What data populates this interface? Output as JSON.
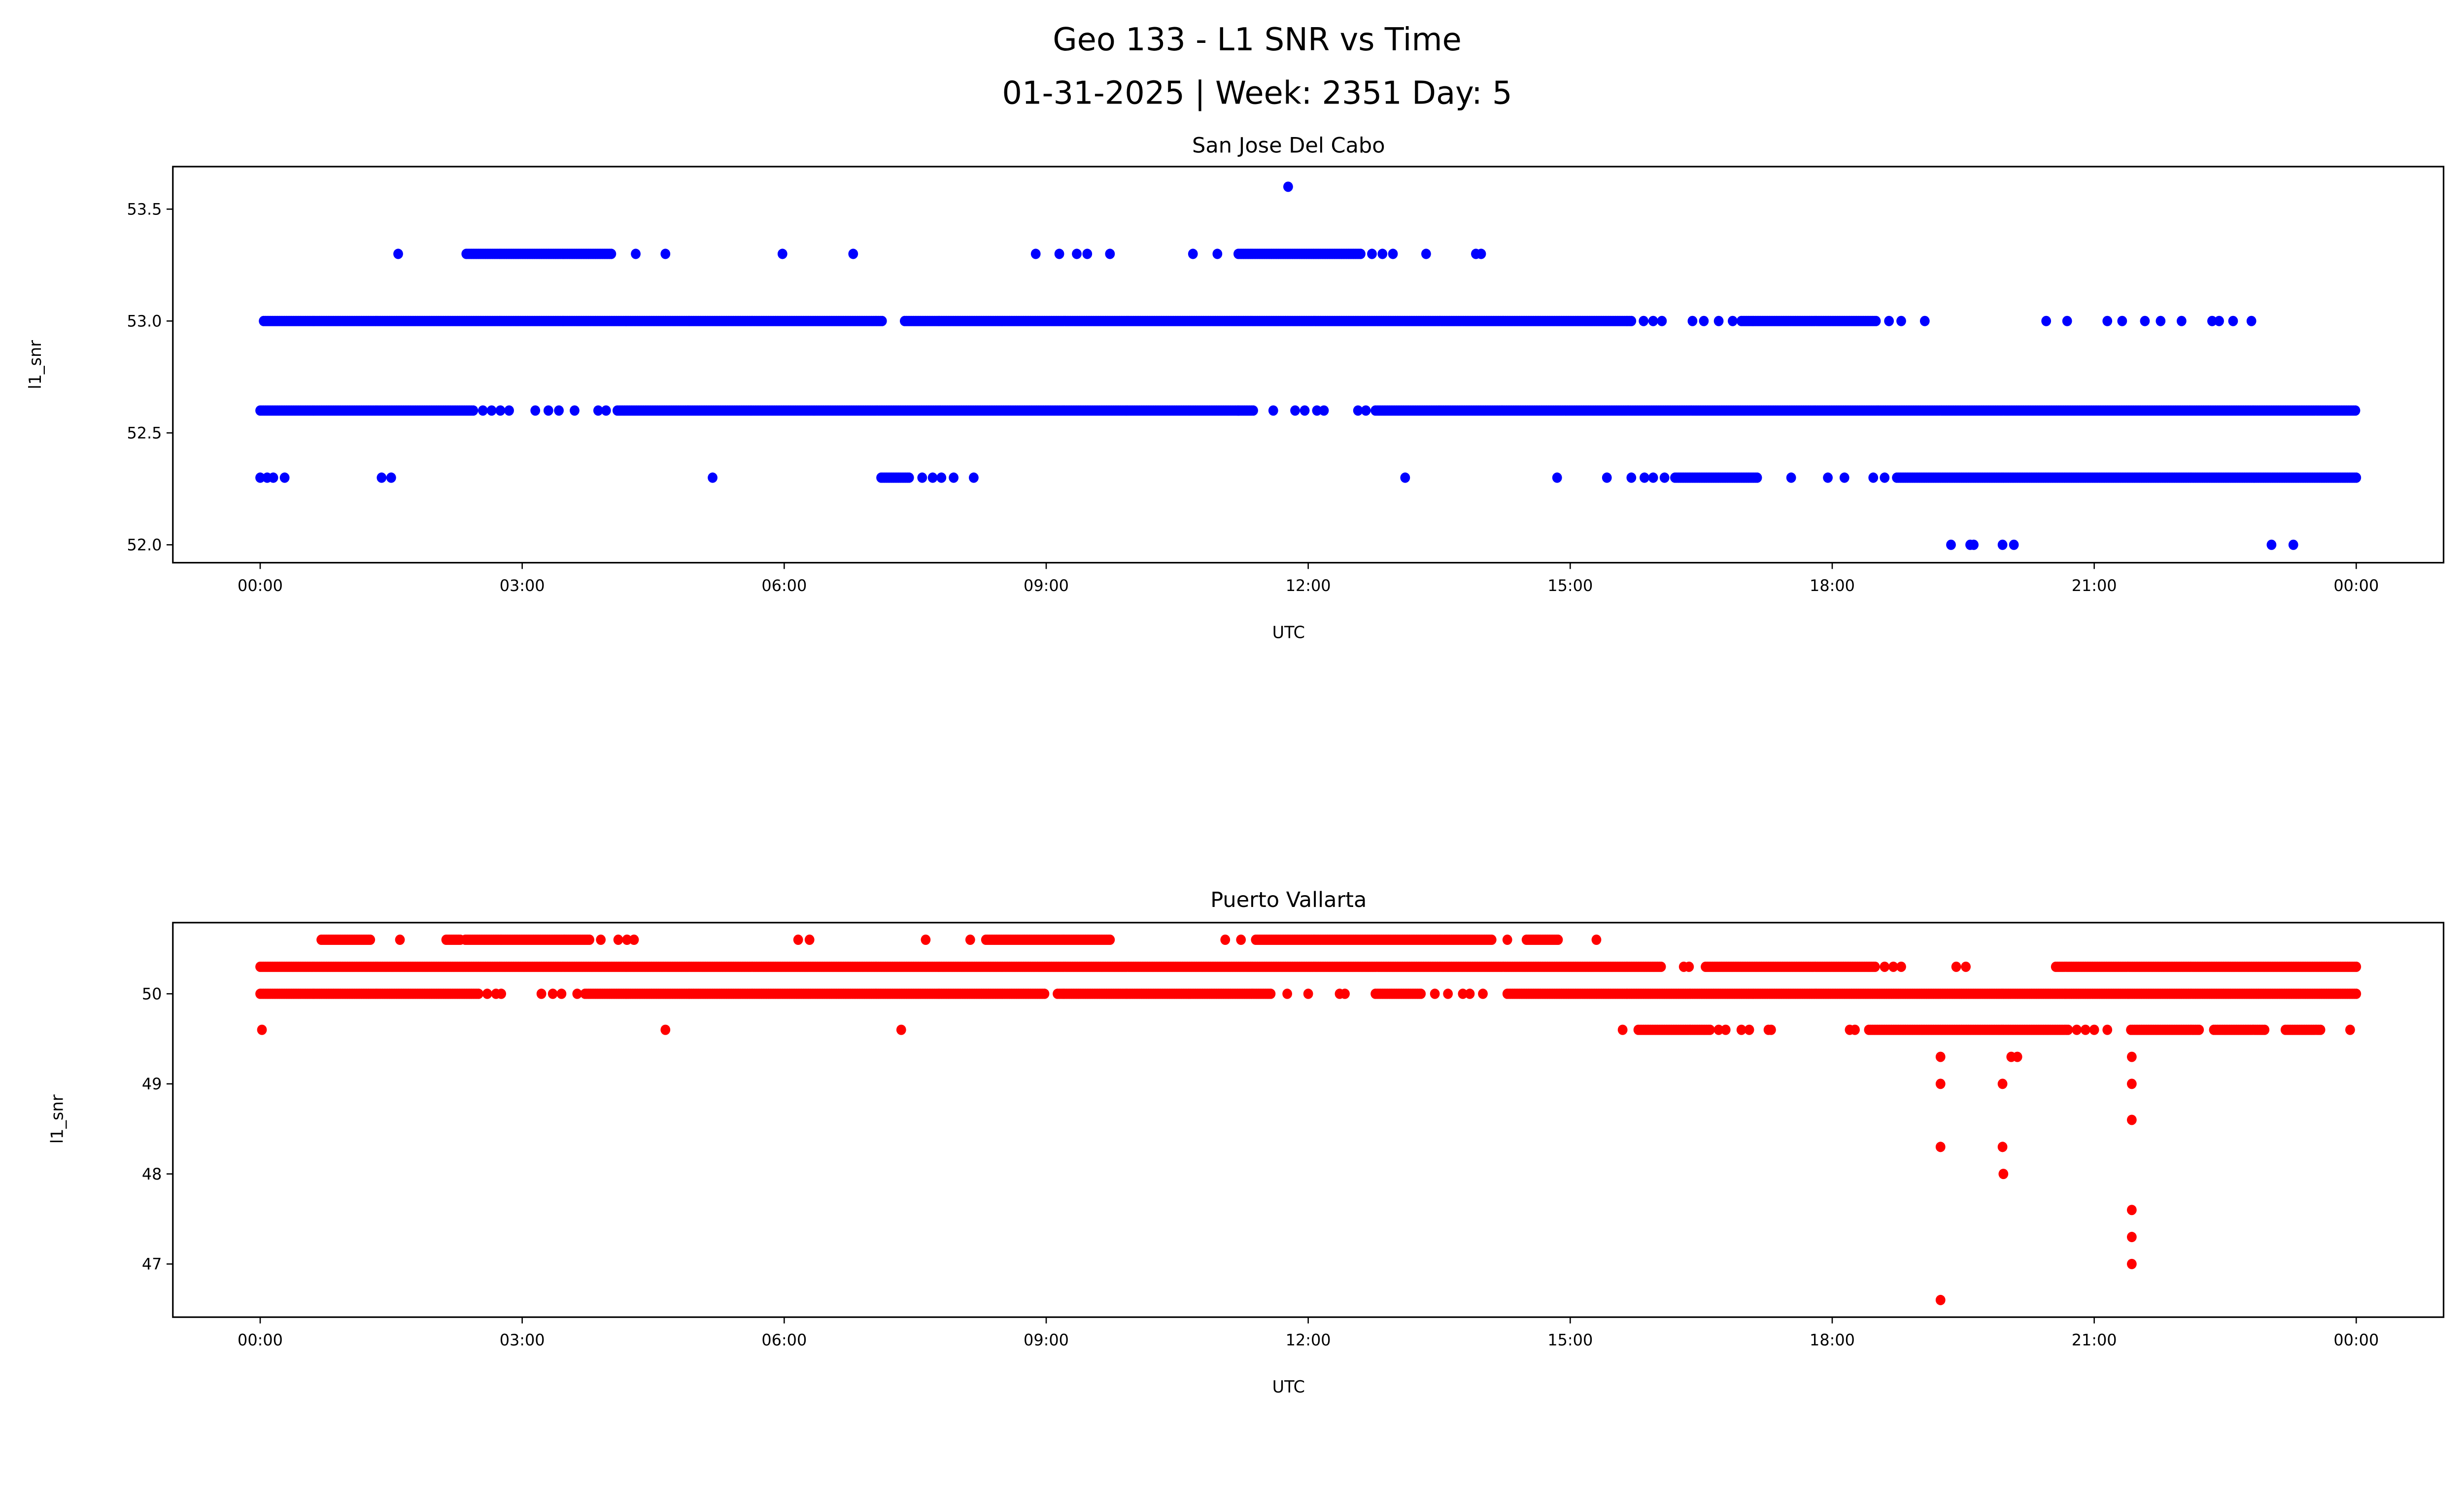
{
  "figure": {
    "title_line1": "Geo 133 - L1 SNR vs Time",
    "title_line2": "01-31-2025 | Week: 2351 Day: 5"
  },
  "chart_data": [
    {
      "type": "scatter",
      "title": "San Jose Del Cabo",
      "xlabel": "UTC",
      "ylabel": "l1_snr",
      "x_unit": "hours since 00:00 UTC",
      "xlim": [
        -1.0,
        25.0
      ],
      "ylim": [
        51.92,
        53.69
      ],
      "xticks": [
        0,
        3,
        6,
        9,
        12,
        15,
        18,
        21,
        24
      ],
      "xtick_labels": [
        "00:00",
        "03:00",
        "06:00",
        "09:00",
        "12:00",
        "15:00",
        "18:00",
        "21:00",
        "00:00"
      ],
      "yticks": [
        52.0,
        52.5,
        53.0,
        53.5
      ],
      "ytick_labels": [
        "52.0",
        "52.5",
        "53.0",
        "53.5"
      ],
      "color": "#0000ff",
      "series": [
        {
          "y": 53.6,
          "runs": [],
          "points": [
            11.77
          ]
        },
        {
          "y": 53.3,
          "runs": [
            [
              2.36,
              4.03
            ],
            [
              11.2,
              12.6
            ]
          ],
          "points": [
            1.58,
            4.3,
            4.64,
            5.98,
            6.79,
            8.88,
            9.15,
            9.35,
            9.47,
            9.73,
            10.68,
            10.96,
            12.73,
            12.85,
            12.97,
            13.35,
            13.92,
            13.98
          ]
        },
        {
          "y": 53.0,
          "runs": [
            [
              0.04,
              7.12
            ],
            [
              7.38,
              15.7
            ],
            [
              16.96,
              18.5
            ]
          ],
          "points": [
            15.84,
            15.95,
            16.05,
            16.4,
            16.53,
            16.7,
            16.86,
            18.65,
            18.79,
            19.06,
            20.45,
            20.69,
            21.15,
            21.32,
            21.58,
            21.76,
            22.0,
            22.35,
            22.43,
            22.59,
            22.8
          ]
        },
        {
          "y": 52.6,
          "runs": [
            [
              0.0,
              2.45
            ],
            [
              4.09,
              11.37
            ],
            [
              12.77,
              24.0
            ]
          ],
          "points": [
            2.55,
            2.65,
            2.75,
            2.85,
            3.15,
            3.3,
            3.42,
            3.6,
            3.87,
            3.96,
            11.2,
            11.6,
            11.85,
            11.96,
            12.1,
            12.18,
            12.57,
            12.66
          ]
        },
        {
          "y": 52.3,
          "runs": [
            [
              7.11,
              7.44
            ],
            [
              16.2,
              17.14
            ],
            [
              18.74,
              24.0
            ]
          ],
          "points": [
            0.0,
            0.08,
            0.15,
            0.28,
            1.39,
            1.5,
            5.18,
            7.58,
            7.7,
            7.8,
            7.94,
            8.17,
            13.11,
            14.85,
            15.42,
            15.7,
            15.85,
            15.95,
            16.08,
            17.53,
            17.95,
            18.14,
            18.47,
            18.6
          ]
        },
        {
          "y": 52.0,
          "runs": [],
          "points": [
            19.36,
            19.58,
            19.62,
            19.95,
            20.08,
            23.03,
            23.28
          ]
        }
      ]
    },
    {
      "type": "scatter",
      "title": "Puerto Vallarta",
      "xlabel": "UTC",
      "ylabel": "l1_snr",
      "x_unit": "hours since 00:00 UTC",
      "xlim": [
        -1.0,
        25.0
      ],
      "ylim": [
        46.41,
        50.79
      ],
      "xticks": [
        0,
        3,
        6,
        9,
        12,
        15,
        18,
        21,
        24
      ],
      "xtick_labels": [
        "00:00",
        "03:00",
        "06:00",
        "09:00",
        "12:00",
        "15:00",
        "18:00",
        "21:00",
        "00:00"
      ],
      "yticks": [
        47,
        48,
        49,
        50
      ],
      "ytick_labels": [
        "47",
        "48",
        "49",
        "50"
      ],
      "color": "#ff0000",
      "series": [
        {
          "y": 50.6,
          "runs": [
            [
              0.7,
              1.27
            ],
            [
              2.13,
              2.3
            ],
            [
              2.35,
              3.78
            ],
            [
              8.31,
              9.73
            ],
            [
              11.4,
              14.1
            ],
            [
              14.5,
              14.87
            ]
          ],
          "points": [
            1.6,
            3.9,
            4.1,
            4.2,
            4.28,
            6.16,
            6.29,
            7.62,
            8.13,
            11.05,
            11.23,
            14.28,
            15.3
          ]
        },
        {
          "y": 50.3,
          "runs": [
            [
              0.0,
              16.05
            ],
            [
              16.55,
              18.5
            ],
            [
              20.56,
              24.0
            ]
          ],
          "points": [
            16.3,
            16.36,
            18.6,
            18.7,
            18.79,
            19.42,
            19.53
          ]
        },
        {
          "y": 50.0,
          "runs": [
            [
              0.0,
              2.5
            ],
            [
              3.72,
              8.99
            ],
            [
              9.13,
              11.58
            ],
            [
              12.77,
              13.3
            ],
            [
              14.28,
              24.0
            ]
          ],
          "points": [
            2.6,
            2.7,
            2.76,
            3.22,
            3.35,
            3.45,
            3.63,
            11.76,
            12.0,
            12.36,
            12.42,
            13.45,
            13.6,
            13.77,
            13.85,
            14.0
          ]
        },
        {
          "y": 49.6,
          "runs": [
            [
              15.78,
              16.6
            ],
            [
              18.42,
              20.7
            ],
            [
              21.42,
              22.2
            ],
            [
              22.37,
              22.96
            ],
            [
              23.19,
              23.6
            ]
          ],
          "points": [
            0.02,
            4.64,
            7.34,
            15.6,
            16.7,
            16.78,
            16.96,
            17.05,
            17.27,
            17.3,
            18.2,
            18.26,
            20.8,
            20.9,
            21.0,
            21.15,
            23.93
          ]
        },
        {
          "y": 49.3,
          "runs": [],
          "points": [
            19.24,
            20.05,
            20.12,
            21.43
          ]
        },
        {
          "y": 49.0,
          "runs": [],
          "points": [
            19.24,
            19.95,
            21.43
          ]
        },
        {
          "y": 48.6,
          "runs": [],
          "points": [
            21.43
          ]
        },
        {
          "y": 48.3,
          "runs": [],
          "points": [
            19.24,
            19.95
          ]
        },
        {
          "y": 48.0,
          "runs": [],
          "points": [
            19.96
          ]
        },
        {
          "y": 47.6,
          "runs": [],
          "points": [
            21.43
          ]
        },
        {
          "y": 47.3,
          "runs": [],
          "points": [
            21.43
          ]
        },
        {
          "y": 47.0,
          "runs": [],
          "points": [
            21.43
          ]
        },
        {
          "y": 46.6,
          "runs": [],
          "points": [
            19.24
          ]
        }
      ]
    }
  ]
}
